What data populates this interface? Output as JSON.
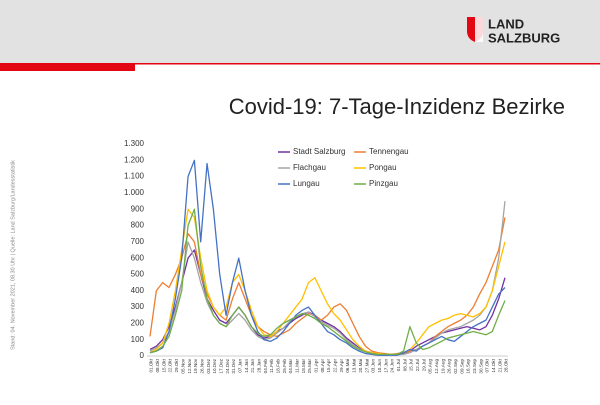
{
  "header": {
    "logo_line1": "LAND",
    "logo_line2": "SALZBURG"
  },
  "source_note": "Stand: 04. November  2021, 08.30 Uhr | Quelle: Land Salzburg/Landesstatistik",
  "chart_data": {
    "type": "line",
    "title": "Covid-19: 7-Tage-Inzidenz Bezirke",
    "categories": [
      "01.Okt",
      "08.Okt",
      "15.Okt",
      "22.Okt",
      "29.Okt",
      "05.Nov",
      "12.Nov",
      "19.Nov",
      "26.Nov",
      "03.Dez",
      "10.Dez",
      "17.Dez",
      "24.Dez",
      "31.Dez",
      "07.Jan",
      "14.Jan",
      "21.Jan",
      "28.Jan",
      "04.Feb",
      "11.Feb",
      "18.Feb",
      "25.Feb",
      "04.Mar",
      "11.Mar",
      "18.Mar",
      "25.Mar",
      "01.Apr",
      "08.Apr",
      "15.Apr",
      "22.Apr",
      "29.Apr",
      "06.Mai",
      "13.Mai",
      "20.Mai",
      "27.Mai",
      "03.Jun",
      "10.Jun",
      "17.Jun",
      "24.Jun",
      "01.Jul",
      "08.Jul",
      "15.Jul",
      "22.Jul",
      "29.Jul",
      "05.Aug",
      "12.Aug",
      "19.Aug",
      "26.Aug",
      "02.Sep",
      "09.Sep",
      "16.Sep",
      "23.Sep",
      "30.Sep",
      "07.Okt",
      "14.Okt",
      "21.Okt",
      "28.Okt"
    ],
    "series": [
      {
        "name": "Stadt Salzburg",
        "color": "#7030a0",
        "values": [
          40,
          60,
          100,
          180,
          300,
          450,
          600,
          650,
          500,
          350,
          280,
          220,
          200,
          250,
          300,
          250,
          180,
          130,
          110,
          120,
          150,
          170,
          200,
          230,
          250,
          270,
          250,
          220,
          200,
          180,
          150,
          110,
          80,
          50,
          30,
          20,
          15,
          10,
          10,
          10,
          15,
          30,
          60,
          80,
          100,
          120,
          140,
          150,
          160,
          170,
          180,
          170,
          160,
          180,
          250,
          350,
          480
        ]
      },
      {
        "name": "Tennengau",
        "color": "#ed7d31",
        "values": [
          120,
          400,
          450,
          420,
          500,
          600,
          750,
          700,
          500,
          380,
          300,
          250,
          220,
          350,
          450,
          350,
          250,
          180,
          150,
          130,
          120,
          140,
          160,
          200,
          230,
          260,
          250,
          220,
          250,
          300,
          320,
          280,
          200,
          120,
          60,
          30,
          20,
          15,
          10,
          15,
          20,
          30,
          40,
          60,
          80,
          120,
          150,
          180,
          200,
          220,
          250,
          300,
          380,
          450,
          550,
          650,
          850
        ]
      },
      {
        "name": "Flachgau",
        "color": "#a5a5a5",
        "values": [
          30,
          50,
          80,
          150,
          280,
          450,
          700,
          600,
          450,
          330,
          250,
          200,
          180,
          220,
          260,
          220,
          160,
          120,
          100,
          110,
          140,
          170,
          210,
          240,
          260,
          270,
          240,
          210,
          190,
          170,
          140,
          100,
          70,
          45,
          25,
          15,
          10,
          8,
          8,
          8,
          10,
          20,
          40,
          60,
          80,
          110,
          140,
          160,
          170,
          180,
          200,
          220,
          250,
          300,
          400,
          600,
          950
        ]
      },
      {
        "name": "Pongau",
        "color": "#ffc000",
        "values": [
          20,
          40,
          80,
          200,
          400,
          650,
          900,
          850,
          600,
          400,
          300,
          250,
          300,
          450,
          500,
          400,
          280,
          180,
          130,
          120,
          150,
          200,
          250,
          300,
          350,
          450,
          480,
          400,
          320,
          260,
          220,
          160,
          100,
          60,
          30,
          20,
          15,
          10,
          10,
          10,
          20,
          40,
          80,
          130,
          180,
          200,
          220,
          230,
          250,
          260,
          250,
          240,
          260,
          300,
          400,
          550,
          700
        ]
      },
      {
        "name": "Lungau",
        "color": "#4472c4",
        "values": [
          20,
          30,
          50,
          150,
          350,
          600,
          1100,
          1200,
          700,
          1180,
          900,
          500,
          250,
          450,
          600,
          400,
          250,
          150,
          100,
          90,
          110,
          150,
          200,
          250,
          280,
          300,
          250,
          200,
          150,
          130,
          100,
          80,
          50,
          30,
          15,
          10,
          5,
          5,
          5,
          5,
          20,
          40,
          30,
          60,
          80,
          100,
          120,
          100,
          90,
          120,
          150,
          180,
          200,
          220,
          300,
          380,
          420
        ]
      },
      {
        "name": "Pinzgau",
        "color": "#70ad47",
        "values": [
          20,
          30,
          60,
          120,
          250,
          400,
          800,
          900,
          550,
          350,
          250,
          200,
          180,
          250,
          300,
          250,
          180,
          140,
          120,
          130,
          170,
          200,
          220,
          240,
          260,
          250,
          230,
          200,
          180,
          150,
          120,
          90,
          60,
          40,
          25,
          15,
          10,
          10,
          10,
          10,
          30,
          180,
          80,
          40,
          50,
          70,
          90,
          110,
          120,
          130,
          140,
          150,
          140,
          130,
          150,
          250,
          340
        ]
      }
    ],
    "ylim": [
      0,
      1300
    ],
    "yticks": [
      0,
      100,
      200,
      300,
      400,
      500,
      600,
      700,
      800,
      900,
      {
        "value": 1000,
        "label": "1.000"
      },
      {
        "value": 1100,
        "label": "1.100"
      },
      {
        "value": 1200,
        "label": "1.200"
      },
      {
        "value": 1300,
        "label": "1.300"
      }
    ],
    "grid": false
  }
}
